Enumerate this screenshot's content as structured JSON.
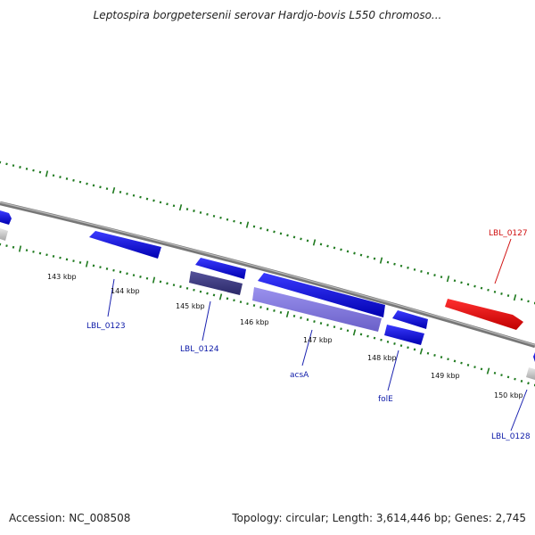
{
  "title": "Leptospira borgpetersenii serovar Hardjo-bovis L550 chromoso...",
  "footer": {
    "accession": "Accession: NC_008508",
    "summary": "Topology: circular; Length: 3,614,446 bp; Genes: 2,745"
  },
  "colors": {
    "forward_gene": "#1010e0",
    "reverse_gene_dark": "#3c3a88",
    "reverse_gene_light": "#7b72d8",
    "highlight_gene": "#ee1111",
    "backbone": "#888888",
    "ticks": "#1f7a1f",
    "label_blue": "#0d1aa8",
    "label_red": "#d01010"
  },
  "scale_labels": [
    "143 kbp",
    "144 kbp",
    "145 kbp",
    "146 kbp",
    "147 kbp",
    "148 kbp",
    "149 kbp",
    "150 kbp"
  ],
  "gene_labels": [
    {
      "name": "LBL_0123",
      "color": "label_blue"
    },
    {
      "name": "LBL_0124",
      "color": "label_blue"
    },
    {
      "name": "acsA",
      "color": "label_blue"
    },
    {
      "name": "folE",
      "color": "label_blue"
    },
    {
      "name": "LBL_0127",
      "color": "label_red"
    },
    {
      "name": "LBL_0128",
      "color": "label_blue"
    }
  ]
}
